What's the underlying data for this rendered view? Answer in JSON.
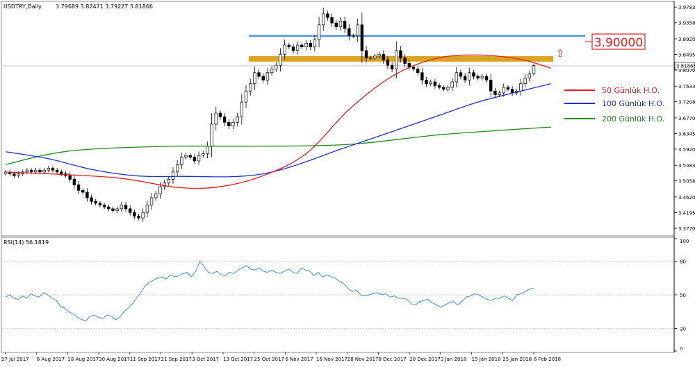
{
  "header": {
    "symbol": "USDTRY,Daily",
    "ohlc": "3.79689 3.82471 3.79227 3.81866"
  },
  "price_panel": {
    "y_ticks": [
      "3.97830",
      "3.93580",
      "3.89205",
      "3.84955",
      "3.80705",
      "3.76330",
      "3.72080",
      "3.67705",
      "3.63455",
      "3.59205",
      "3.54830",
      "3.50580",
      "3.46205",
      "3.41955",
      "3.37705"
    ],
    "current_price_label": "3.81866",
    "target_label": "3.90000",
    "arrow_glyph": "⇧"
  },
  "legend": {
    "items": [
      {
        "label": "50 Günlük H.O.",
        "color": "#e41e1e"
      },
      {
        "label": "100 Günlük H.O.",
        "color": "#1f2fd0"
      },
      {
        "label": "200 Günlük H.O.",
        "color": "#1d8a1d"
      }
    ]
  },
  "rsi_panel": {
    "header": "RSI(14) 56.1819",
    "y_ticks": [
      "100",
      "80",
      "50",
      "20",
      "0"
    ]
  },
  "x_axis": {
    "labels": [
      "27 Jul 2017",
      "8 Aug 2017",
      "18 Aug 2017",
      "30 Aug 2017",
      "11 Sep 2017",
      "21 Sep 2017",
      "3 Oct 2017",
      "13 Oct 2017",
      "25 Oct 2017",
      "6 Nov 2017",
      "16 Nov 2017",
      "28 Nov 2017",
      "8 Dec 2017",
      "20 Dec 2017",
      "3 Jan 2018",
      "15 Jan 2018",
      "25 Jan 2018",
      "6 Feb 2018"
    ]
  },
  "colors": {
    "up_candle": "#ffffff",
    "down_candle": "#000000",
    "resistance_line": "#2e7cf6",
    "support_zone": "#d9a521",
    "rsi_line": "#3d8fe0",
    "target_box": "#e41e1e",
    "price_line": "#c8c8c8",
    "dashed_level": "#c0c0c0"
  },
  "chart_data": [
    {
      "type": "candlestick",
      "title": "USDTRY,Daily",
      "x_labels": [
        "27 Jul 2017",
        "8 Aug 2017",
        "18 Aug 2017",
        "30 Aug 2017",
        "11 Sep 2017",
        "21 Sep 2017",
        "3 Oct 2017",
        "13 Oct 2017",
        "25 Oct 2017",
        "6 Nov 2017",
        "16 Nov 2017",
        "28 Nov 2017",
        "8 Dec 2017",
        "20 Dec 2017",
        "3 Jan 2018",
        "15 Jan 2018",
        "25 Jan 2018",
        "6 Feb 2018"
      ],
      "ylim": [
        3.36,
        3.99
      ],
      "last": {
        "open": 3.79689,
        "high": 3.82471,
        "low": 3.79227,
        "close": 3.81866
      },
      "closes": [
        3.53,
        3.525,
        3.52,
        3.525,
        3.53,
        3.535,
        3.53,
        3.535,
        3.53,
        3.535,
        3.54,
        3.535,
        3.53,
        3.525,
        3.52,
        3.51,
        3.495,
        3.48,
        3.475,
        3.46,
        3.45,
        3.445,
        3.44,
        3.435,
        3.43,
        3.425,
        3.43,
        3.44,
        3.43,
        3.42,
        3.41,
        3.405,
        3.42,
        3.44,
        3.46,
        3.47,
        3.49,
        3.5,
        3.51,
        3.53,
        3.55,
        3.57,
        3.575,
        3.57,
        3.56,
        3.575,
        3.58,
        3.6,
        3.66,
        3.69,
        3.68,
        3.665,
        3.655,
        3.665,
        3.68,
        3.72,
        3.75,
        3.77,
        3.8,
        3.79,
        3.78,
        3.8,
        3.81,
        3.82,
        3.85,
        3.875,
        3.87,
        3.86,
        3.875,
        3.87,
        3.88,
        3.87,
        3.89,
        3.93,
        3.96,
        3.95,
        3.935,
        3.925,
        3.94,
        3.92,
        3.9,
        3.9,
        3.93,
        3.86,
        3.84,
        3.84,
        3.845,
        3.85,
        3.835,
        3.82,
        3.81,
        3.86,
        3.84,
        3.825,
        3.815,
        3.81,
        3.8,
        3.78,
        3.77,
        3.775,
        3.765,
        3.76,
        3.755,
        3.76,
        3.775,
        3.8,
        3.79,
        3.78,
        3.8,
        3.79,
        3.785,
        3.79,
        3.78,
        3.75,
        3.74,
        3.745,
        3.76,
        3.755,
        3.745,
        3.75,
        3.77,
        3.785,
        3.797,
        3.819
      ],
      "support_zone": [
        3.83,
        3.845
      ],
      "resistance_level": 3.9,
      "series": [
        {
          "name": "50 Günlük H.O.",
          "points": [
            [
              0,
              3.53
            ],
            [
              25,
              3.515
            ],
            [
              40,
              3.488
            ],
            [
              50,
              3.49
            ],
            [
              60,
              3.52
            ],
            [
              70,
              3.58
            ],
            [
              80,
              3.7
            ],
            [
              90,
              3.79
            ],
            [
              100,
              3.838
            ],
            [
              110,
              3.848
            ],
            [
              120,
              3.836
            ],
            [
              127,
              3.812
            ]
          ]
        },
        {
          "name": "100 Günlük H.O.",
          "points": [
            [
              0,
              3.585
            ],
            [
              10,
              3.566
            ],
            [
              20,
              3.537
            ],
            [
              30,
              3.52
            ],
            [
              40,
              3.518
            ],
            [
              60,
              3.525
            ],
            [
              80,
              3.6
            ],
            [
              100,
              3.68
            ],
            [
              110,
              3.72
            ],
            [
              120,
              3.75
            ],
            [
              127,
              3.77
            ]
          ]
        },
        {
          "name": "200 Günlük H.O.",
          "points": [
            [
              0,
              3.55
            ],
            [
              10,
              3.578
            ],
            [
              20,
              3.592
            ],
            [
              40,
              3.6
            ],
            [
              60,
              3.6
            ],
            [
              80,
              3.605
            ],
            [
              100,
              3.63
            ],
            [
              115,
              3.643
            ],
            [
              127,
              3.652
            ]
          ]
        }
      ]
    },
    {
      "type": "line",
      "title": "RSI(14) 56.1819",
      "ylim": [
        0,
        100
      ],
      "levels": [
        80,
        50,
        20
      ],
      "values": [
        48,
        50,
        47,
        46,
        49,
        47,
        51,
        49,
        48,
        52,
        50,
        47,
        45,
        40,
        38,
        35,
        33,
        30,
        28,
        27,
        31,
        32,
        30,
        29,
        32,
        31,
        28,
        30,
        35,
        38,
        42,
        47,
        52,
        58,
        61,
        63,
        65,
        66,
        64,
        68,
        66,
        67,
        69,
        70,
        66,
        71,
        80,
        75,
        70,
        69,
        71,
        68,
        67,
        70,
        69,
        72,
        74,
        76,
        73,
        72,
        74,
        71,
        70,
        72,
        70,
        69,
        71,
        73,
        70,
        69,
        74,
        72,
        71,
        67,
        70,
        66,
        68,
        66,
        65,
        62,
        60,
        56,
        53,
        54,
        50,
        49,
        50,
        51,
        52,
        50,
        51,
        48,
        49,
        47,
        47,
        46,
        42,
        41,
        44,
        45,
        46,
        43,
        41,
        39,
        41,
        43,
        44,
        41,
        44,
        48,
        49,
        51,
        50,
        48,
        46,
        45,
        47,
        47,
        49,
        47,
        45,
        50,
        51,
        53,
        55,
        56
      ]
    }
  ]
}
